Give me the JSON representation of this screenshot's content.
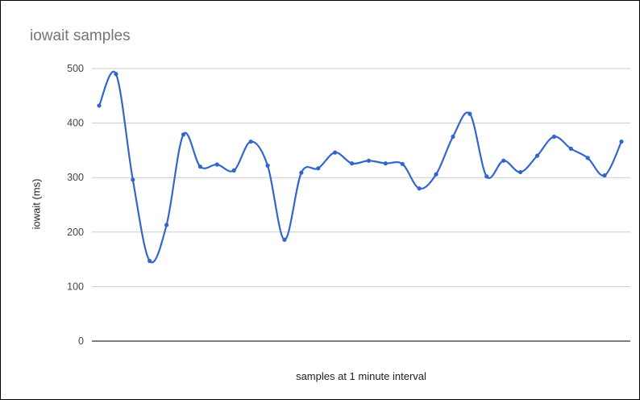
{
  "chart_data": {
    "type": "line",
    "title": "iowait samples",
    "xlabel": "samples at 1 minute interval",
    "ylabel": "iowait (ms)",
    "ylim": [
      0,
      500
    ],
    "yticks": [
      0,
      100,
      200,
      300,
      400,
      500
    ],
    "grid": true,
    "smooth": true,
    "line_color": "#3366cc",
    "series": [
      {
        "values": [
          432,
          490,
          296,
          147,
          213,
          379,
          320,
          324,
          313,
          366,
          322,
          186,
          309,
          317,
          346,
          326,
          331,
          326,
          325,
          280,
          306,
          375,
          417,
          302,
          331,
          310,
          340,
          375,
          353,
          336,
          304,
          366
        ]
      }
    ]
  }
}
